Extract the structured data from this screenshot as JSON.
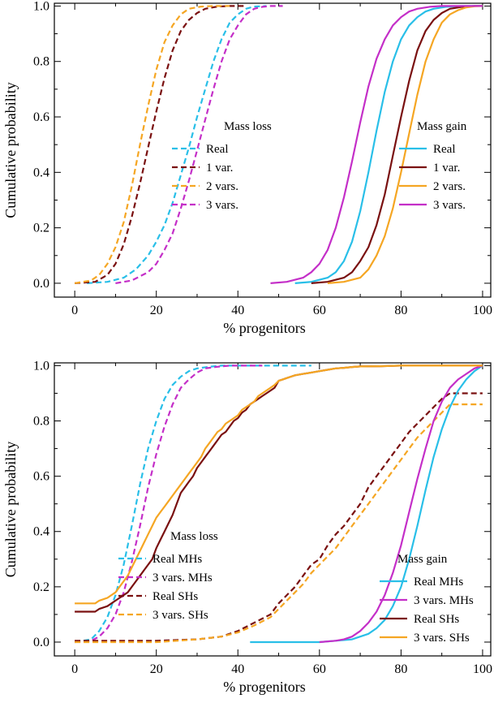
{
  "chart_data": [
    {
      "type": "line",
      "panel": "top",
      "xlabel": "% progenitors",
      "ylabel": "Cumulative probability",
      "xlim": [
        -5,
        102
      ],
      "ylim": [
        -0.05,
        1.01
      ],
      "xticks": [
        "0",
        "20",
        "40",
        "60",
        "80",
        "100"
      ],
      "yticks": [
        "0.0",
        "0.2",
        "0.4",
        "0.6",
        "0.8",
        "1.0"
      ],
      "legends": [
        {
          "title": "Mass loss",
          "placement": "center-left",
          "entries": [
            "Real",
            "1 var.",
            "2 vars.",
            "3 vars."
          ]
        },
        {
          "title": "Mass gain",
          "placement": "center-right",
          "entries": [
            "Real",
            "1 var.",
            "2 vars.",
            "3 vars."
          ]
        }
      ],
      "series": [
        {
          "group": "Mass loss",
          "name": "Real",
          "color": "#29BFE8",
          "dash": true,
          "x": [
            3,
            8,
            12,
            15,
            18,
            20,
            22,
            24,
            26,
            28,
            30,
            32,
            34,
            36,
            38,
            40,
            42,
            44,
            47
          ],
          "y": [
            0,
            0.005,
            0.02,
            0.05,
            0.1,
            0.15,
            0.21,
            0.29,
            0.39,
            0.49,
            0.6,
            0.7,
            0.8,
            0.88,
            0.94,
            0.97,
            0.99,
            0.998,
            1.0
          ]
        },
        {
          "group": "Mass loss",
          "name": "1 var.",
          "color": "#7A1010",
          "dash": true,
          "x": [
            0,
            5,
            8,
            10,
            12,
            14,
            16,
            18,
            20,
            22,
            24,
            26,
            28,
            30,
            32,
            35,
            38,
            42
          ],
          "y": [
            0,
            0.005,
            0.03,
            0.07,
            0.14,
            0.24,
            0.36,
            0.49,
            0.62,
            0.74,
            0.84,
            0.91,
            0.95,
            0.975,
            0.99,
            0.998,
            1.0,
            1.0
          ]
        },
        {
          "group": "Mass loss",
          "name": "2 vars.",
          "color": "#F5A623",
          "dash": true,
          "x": [
            0,
            4,
            6,
            8,
            10,
            12,
            14,
            16,
            18,
            20,
            22,
            24,
            26,
            28,
            31,
            34,
            38
          ],
          "y": [
            0,
            0.01,
            0.03,
            0.07,
            0.13,
            0.22,
            0.35,
            0.5,
            0.64,
            0.77,
            0.87,
            0.93,
            0.97,
            0.99,
            0.998,
            1.0,
            1.0
          ]
        },
        {
          "group": "Mass loss",
          "name": "3 vars.",
          "color": "#C42FC8",
          "dash": true,
          "x": [
            10,
            14,
            18,
            20,
            22,
            24,
            26,
            28,
            30,
            32,
            34,
            36,
            38,
            40,
            42,
            44,
            46,
            48,
            51
          ],
          "y": [
            0,
            0.01,
            0.04,
            0.07,
            0.12,
            0.18,
            0.27,
            0.37,
            0.48,
            0.59,
            0.7,
            0.8,
            0.88,
            0.93,
            0.97,
            0.99,
            0.997,
            1.0,
            1.0
          ]
        },
        {
          "group": "Mass gain",
          "name": "Real",
          "color": "#29BFE8",
          "dash": false,
          "x": [
            54,
            58,
            62,
            64,
            66,
            68,
            70,
            72,
            74,
            76,
            78,
            80,
            82,
            84,
            86,
            88,
            91,
            95,
            100
          ],
          "y": [
            0,
            0.005,
            0.02,
            0.04,
            0.08,
            0.15,
            0.26,
            0.4,
            0.55,
            0.69,
            0.8,
            0.88,
            0.93,
            0.96,
            0.98,
            0.99,
            0.997,
            1.0,
            1.0
          ]
        },
        {
          "group": "Mass gain",
          "name": "1 var.",
          "color": "#7A1010",
          "dash": false,
          "x": [
            58,
            62,
            66,
            68,
            70,
            72,
            74,
            76,
            78,
            80,
            82,
            84,
            86,
            88,
            90,
            92,
            95,
            98,
            100
          ],
          "y": [
            0,
            0.005,
            0.02,
            0.04,
            0.08,
            0.13,
            0.21,
            0.32,
            0.46,
            0.6,
            0.73,
            0.84,
            0.91,
            0.95,
            0.975,
            0.99,
            0.997,
            1.0,
            1.0
          ]
        },
        {
          "group": "Mass gain",
          "name": "2 vars.",
          "color": "#F5A623",
          "dash": false,
          "x": [
            62,
            66,
            70,
            72,
            74,
            76,
            78,
            80,
            82,
            84,
            86,
            88,
            90,
            92,
            94,
            96,
            98,
            100
          ],
          "y": [
            0,
            0.005,
            0.02,
            0.05,
            0.1,
            0.17,
            0.27,
            0.4,
            0.54,
            0.68,
            0.8,
            0.88,
            0.94,
            0.97,
            0.985,
            0.995,
            0.999,
            1.0
          ]
        },
        {
          "group": "Mass gain",
          "name": "3 vars.",
          "color": "#C42FC8",
          "dash": false,
          "x": [
            48,
            52,
            56,
            58,
            60,
            62,
            64,
            66,
            68,
            70,
            72,
            74,
            76,
            78,
            80,
            82,
            84,
            87,
            90,
            95,
            100
          ],
          "y": [
            0,
            0.005,
            0.02,
            0.04,
            0.07,
            0.12,
            0.2,
            0.31,
            0.44,
            0.58,
            0.71,
            0.81,
            0.88,
            0.93,
            0.96,
            0.98,
            0.99,
            0.997,
            1.0,
            1.0,
            1.0
          ]
        }
      ]
    },
    {
      "type": "line",
      "panel": "bottom",
      "xlabel": "% progenitors",
      "ylabel": "Cumulative probability",
      "xlim": [
        -5,
        102
      ],
      "ylim": [
        -0.05,
        1.01
      ],
      "xticks": [
        "0",
        "20",
        "40",
        "60",
        "80",
        "100"
      ],
      "yticks": [
        "0.0",
        "0.2",
        "0.4",
        "0.6",
        "0.8",
        "1.0"
      ],
      "legends": [
        {
          "title": "Mass loss",
          "placement": "bottom-left",
          "entries": [
            "Real MHs",
            "3 vars. MHs",
            "Real SHs",
            "3 vars. SHs"
          ]
        },
        {
          "title": "Mass gain",
          "placement": "bottom-right",
          "entries": [
            "Real MHs",
            "3 vars. MHs",
            "Real SHs",
            "3 vars. SHs"
          ]
        }
      ],
      "series": [
        {
          "group": "Mass loss",
          "name": "Real MHs",
          "color": "#29BFE8",
          "dash": true,
          "x": [
            0,
            4,
            6,
            8,
            10,
            12,
            14,
            16,
            18,
            20,
            22,
            24,
            26,
            28,
            30,
            33,
            36,
            40,
            45,
            58
          ],
          "y": [
            0,
            0.01,
            0.04,
            0.09,
            0.17,
            0.28,
            0.42,
            0.57,
            0.7,
            0.8,
            0.88,
            0.93,
            0.96,
            0.98,
            0.99,
            0.996,
            1.0,
            1.0,
            1.0,
            1.0
          ]
        },
        {
          "group": "Mass loss",
          "name": "3 vars. MHs",
          "color": "#C42FC8",
          "dash": true,
          "x": [
            0,
            4,
            6,
            8,
            10,
            12,
            14,
            16,
            18,
            20,
            22,
            24,
            26,
            28,
            30,
            32,
            35,
            38,
            42,
            46
          ],
          "y": [
            0,
            0.005,
            0.02,
            0.05,
            0.1,
            0.18,
            0.29,
            0.42,
            0.56,
            0.68,
            0.78,
            0.86,
            0.92,
            0.95,
            0.975,
            0.99,
            0.996,
            1.0,
            1.0,
            1.0
          ]
        },
        {
          "group": "Mass loss",
          "name": "Real SHs",
          "color": "#7A1010",
          "dash": true,
          "x": [
            0,
            10,
            20,
            30,
            36,
            40,
            44,
            48,
            50,
            52,
            54,
            56,
            58,
            60,
            62,
            64,
            66,
            68,
            70,
            72,
            74,
            76,
            78,
            80,
            82,
            84,
            86,
            88,
            90,
            92,
            95,
            100
          ],
          "y": [
            0.005,
            0.005,
            0.005,
            0.01,
            0.02,
            0.04,
            0.07,
            0.1,
            0.14,
            0.17,
            0.2,
            0.24,
            0.28,
            0.3,
            0.35,
            0.39,
            0.42,
            0.46,
            0.5,
            0.56,
            0.6,
            0.64,
            0.68,
            0.72,
            0.76,
            0.79,
            0.82,
            0.85,
            0.88,
            0.9,
            0.9,
            0.9
          ]
        },
        {
          "group": "Mass loss",
          "name": "3 vars. SHs",
          "color": "#F5A623",
          "dash": true,
          "x": [
            0,
            10,
            20,
            30,
            36,
            40,
            44,
            48,
            50,
            52,
            54,
            56,
            58,
            60,
            62,
            64,
            66,
            68,
            70,
            72,
            74,
            76,
            78,
            80,
            82,
            84,
            86,
            88,
            90,
            92,
            95,
            100
          ],
          "y": [
            0.0,
            0.0,
            0.0,
            0.01,
            0.02,
            0.035,
            0.06,
            0.09,
            0.12,
            0.15,
            0.18,
            0.21,
            0.25,
            0.28,
            0.31,
            0.34,
            0.38,
            0.42,
            0.46,
            0.5,
            0.54,
            0.58,
            0.62,
            0.66,
            0.7,
            0.74,
            0.77,
            0.8,
            0.83,
            0.86,
            0.86,
            0.86
          ]
        },
        {
          "group": "Mass gain",
          "name": "Real MHs",
          "color": "#29BFE8",
          "dash": false,
          "x": [
            43,
            60,
            64,
            68,
            72,
            74,
            76,
            78,
            80,
            82,
            84,
            86,
            88,
            90,
            92,
            94,
            96,
            98,
            100
          ],
          "y": [
            0,
            0,
            0.005,
            0.01,
            0.03,
            0.05,
            0.08,
            0.13,
            0.2,
            0.3,
            0.42,
            0.55,
            0.67,
            0.77,
            0.85,
            0.91,
            0.95,
            0.98,
            1.0
          ]
        },
        {
          "group": "Mass gain",
          "name": "3 vars. MHs",
          "color": "#C42FC8",
          "dash": false,
          "x": [
            60,
            64,
            66,
            68,
            70,
            72,
            74,
            76,
            78,
            80,
            82,
            84,
            86,
            88,
            90,
            92,
            94,
            96,
            98,
            100
          ],
          "y": [
            0,
            0.005,
            0.01,
            0.02,
            0.04,
            0.07,
            0.11,
            0.17,
            0.25,
            0.35,
            0.47,
            0.59,
            0.7,
            0.8,
            0.87,
            0.92,
            0.95,
            0.97,
            0.99,
            1.0
          ]
        },
        {
          "group": "Mass gain",
          "name": "Real SHs",
          "color": "#7A1010",
          "dash": false,
          "x": [
            0,
            5,
            6,
            8,
            10,
            11,
            12,
            13,
            14,
            15,
            16,
            17,
            18,
            19,
            20,
            21,
            22,
            23,
            24,
            25,
            26,
            27,
            28,
            29,
            30,
            31,
            32,
            33,
            34,
            35,
            36,
            37,
            38,
            39,
            40,
            41,
            42,
            43,
            44,
            45,
            46,
            47,
            48,
            49,
            50,
            51,
            52,
            53,
            54,
            56,
            58,
            60,
            62,
            64,
            66,
            68,
            70,
            75,
            80,
            90,
            100
          ],
          "y": [
            0.11,
            0.11,
            0.12,
            0.13,
            0.15,
            0.16,
            0.17,
            0.18,
            0.2,
            0.22,
            0.24,
            0.26,
            0.28,
            0.3,
            0.34,
            0.37,
            0.4,
            0.43,
            0.46,
            0.5,
            0.54,
            0.56,
            0.58,
            0.6,
            0.63,
            0.65,
            0.67,
            0.69,
            0.71,
            0.73,
            0.75,
            0.76,
            0.78,
            0.8,
            0.81,
            0.83,
            0.84,
            0.86,
            0.87,
            0.88,
            0.89,
            0.9,
            0.91,
            0.92,
            0.945,
            0.95,
            0.955,
            0.96,
            0.965,
            0.97,
            0.975,
            0.98,
            0.985,
            0.99,
            0.992,
            0.995,
            0.997,
            0.998,
            1.0,
            1.0,
            1.0
          ]
        },
        {
          "group": "Mass gain",
          "name": "3 vars. SHs",
          "color": "#F5A623",
          "dash": false,
          "x": [
            0,
            5,
            6,
            8,
            10,
            11,
            12,
            13,
            14,
            15,
            16,
            17,
            18,
            19,
            20,
            21,
            22,
            23,
            24,
            25,
            26,
            27,
            28,
            29,
            30,
            31,
            32,
            33,
            34,
            35,
            36,
            37,
            38,
            39,
            40,
            41,
            42,
            43,
            44,
            45,
            46,
            47,
            48,
            49,
            50,
            51,
            52,
            53,
            54,
            56,
            58,
            60,
            62,
            64,
            66,
            68,
            70,
            75,
            80,
            90,
            100
          ],
          "y": [
            0.14,
            0.14,
            0.15,
            0.16,
            0.18,
            0.2,
            0.22,
            0.24,
            0.27,
            0.3,
            0.33,
            0.36,
            0.39,
            0.42,
            0.45,
            0.47,
            0.49,
            0.51,
            0.53,
            0.55,
            0.57,
            0.59,
            0.61,
            0.63,
            0.65,
            0.67,
            0.7,
            0.72,
            0.74,
            0.76,
            0.77,
            0.79,
            0.8,
            0.81,
            0.82,
            0.84,
            0.85,
            0.86,
            0.87,
            0.89,
            0.9,
            0.91,
            0.92,
            0.93,
            0.945,
            0.95,
            0.955,
            0.96,
            0.965,
            0.97,
            0.975,
            0.98,
            0.985,
            0.99,
            0.992,
            0.995,
            0.997,
            0.998,
            1.0,
            1.0,
            1.0
          ]
        }
      ]
    }
  ]
}
